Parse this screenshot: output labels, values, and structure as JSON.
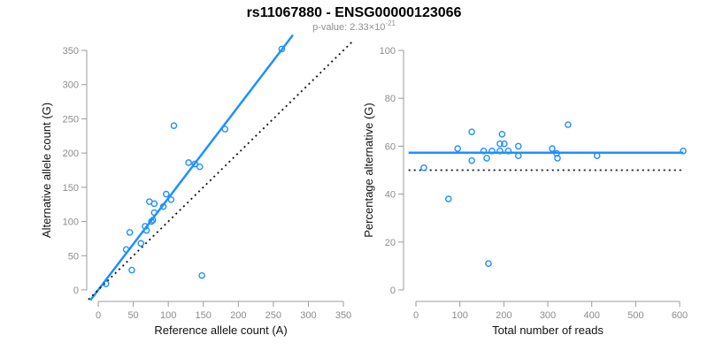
{
  "header": {
    "title": "rs11067880 - ENSG00000123066",
    "pvalue_prefix": "p-value: 2.33×10",
    "pvalue_exponent": "-21"
  },
  "colors": {
    "accent": "#1E90FF",
    "axis_line": "#9b9b9b",
    "tick_label": "#8c8c8c",
    "axis_title": "#111111",
    "reference_line": "#111111"
  },
  "chart_data": [
    {
      "type": "scatter",
      "xlabel": "Reference allele count (A)",
      "ylabel": "Alternative allele count (G)",
      "xlim": [
        0,
        350
      ],
      "ylim": [
        0,
        350
      ],
      "xticks": [
        0,
        50,
        100,
        150,
        200,
        250,
        300,
        350
      ],
      "yticks": [
        0,
        50,
        100,
        150,
        200,
        250,
        300,
        350
      ],
      "grid": false,
      "points": [
        [
          11,
          9
        ],
        [
          40,
          59
        ],
        [
          45,
          84
        ],
        [
          48,
          29
        ],
        [
          61,
          68
        ],
        [
          67,
          93
        ],
        [
          69,
          87
        ],
        [
          73,
          129
        ],
        [
          76,
          100
        ],
        [
          78,
          102
        ],
        [
          80,
          113
        ],
        [
          80,
          126
        ],
        [
          93,
          122
        ],
        [
          97,
          140
        ],
        [
          104,
          132
        ],
        [
          108,
          240
        ],
        [
          129,
          186
        ],
        [
          138,
          184
        ],
        [
          145,
          180
        ],
        [
          148,
          21
        ],
        [
          181,
          235
        ],
        [
          262,
          352
        ]
      ],
      "lines": [
        {
          "kind": "abline",
          "name": "fit-line",
          "slope": 1.34,
          "intercept": 0,
          "style": "solid",
          "color": "#1E90FF",
          "width": 2.5
        },
        {
          "kind": "abline",
          "name": "identity-line",
          "slope": 1,
          "intercept": 0,
          "style": "dotted",
          "color": "#111111",
          "width": 1.8
        }
      ]
    },
    {
      "type": "scatter",
      "xlabel": "Total number of reads",
      "ylabel": "Percentage alternative (G)",
      "xlim": [
        0,
        600
      ],
      "ylim": [
        0,
        100
      ],
      "xticks": [
        0,
        100,
        200,
        300,
        400,
        500,
        600
      ],
      "yticks": [
        0,
        20,
        40,
        60,
        80,
        100
      ],
      "grid": false,
      "points": [
        [
          18,
          51
        ],
        [
          74,
          38
        ],
        [
          95,
          59
        ],
        [
          127,
          66
        ],
        [
          127,
          54
        ],
        [
          154,
          58
        ],
        [
          161,
          55
        ],
        [
          165,
          11
        ],
        [
          173,
          58
        ],
        [
          191,
          58
        ],
        [
          191,
          61
        ],
        [
          196,
          65
        ],
        [
          201,
          61
        ],
        [
          210,
          58
        ],
        [
          233,
          60
        ],
        [
          233,
          56
        ],
        [
          310,
          59
        ],
        [
          320,
          57
        ],
        [
          322,
          55
        ],
        [
          346,
          69
        ],
        [
          412,
          56
        ],
        [
          608,
          58
        ]
      ],
      "lines": [
        {
          "kind": "hline",
          "name": "mean-line",
          "y": 57.3,
          "style": "solid",
          "color": "#1E90FF",
          "width": 2.5
        },
        {
          "kind": "hline",
          "name": "null-line",
          "y": 50,
          "style": "dotted",
          "color": "#111111",
          "width": 1.8
        }
      ]
    }
  ]
}
